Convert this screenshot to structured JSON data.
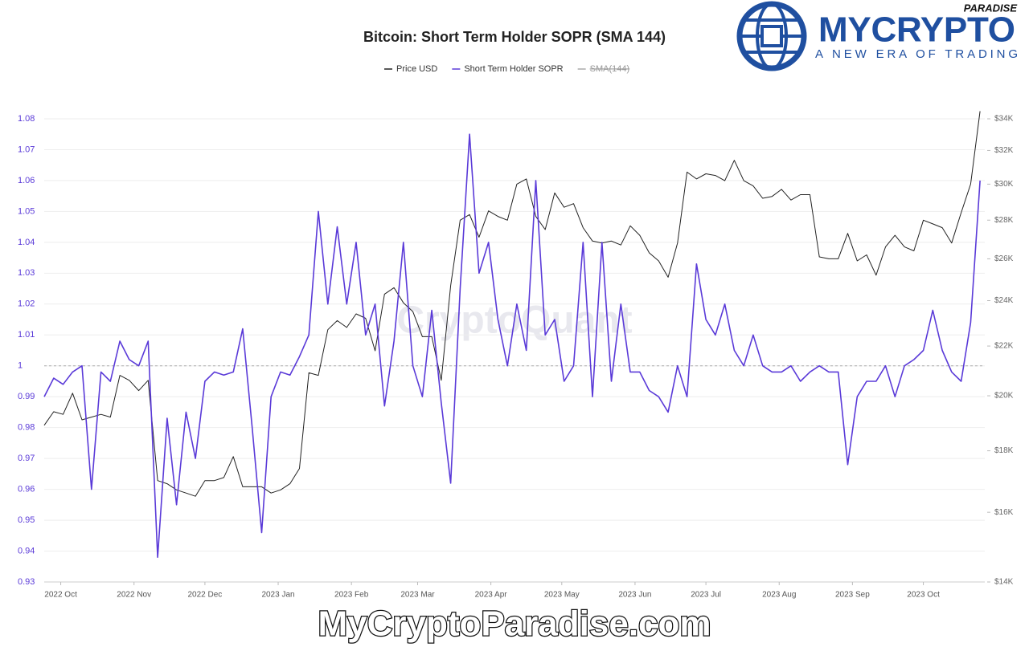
{
  "chart_data": {
    "type": "line",
    "title": "Bitcoin: Short Term Holder SOPR (SMA 144)",
    "x": [
      0,
      4,
      8,
      12,
      16,
      20,
      24,
      28,
      32,
      36,
      40,
      44,
      48,
      52,
      56,
      60,
      64,
      68,
      72,
      76,
      80,
      84,
      88,
      92,
      96,
      100,
      104,
      108,
      112,
      116,
      120,
      124,
      128,
      132,
      136,
      140,
      144,
      148,
      152,
      156,
      160,
      164,
      168,
      172,
      176,
      180,
      184,
      188,
      192,
      196,
      200,
      204,
      208,
      212,
      216,
      220,
      224,
      228,
      232,
      236,
      240,
      244,
      248,
      252,
      256,
      260,
      264,
      268,
      272,
      276,
      280,
      284,
      288,
      292,
      296,
      300,
      304,
      308,
      312,
      316,
      320,
      324,
      328,
      332,
      336,
      340,
      344,
      348,
      352,
      356,
      360,
      364,
      368,
      372,
      376,
      380,
      384,
      388,
      392,
      396
    ],
    "xlim": [
      0,
      398
    ],
    "xticks": [
      {
        "value": 7,
        "label": "2022 Oct"
      },
      {
        "value": 38,
        "label": "2022 Nov"
      },
      {
        "value": 68,
        "label": "2022 Dec"
      },
      {
        "value": 99,
        "label": "2023 Jan"
      },
      {
        "value": 130,
        "label": "2023 Feb"
      },
      {
        "value": 158,
        "label": "2023 Mar"
      },
      {
        "value": 189,
        "label": "2023 Apr"
      },
      {
        "value": 219,
        "label": "2023 May"
      },
      {
        "value": 250,
        "label": "2023 Jun"
      },
      {
        "value": 280,
        "label": "2023 Jul"
      },
      {
        "value": 311,
        "label": "2023 Aug"
      },
      {
        "value": 342,
        "label": "2023 Sep"
      },
      {
        "value": 372,
        "label": "2023 Oct"
      }
    ],
    "series": [
      {
        "name": "Price USD",
        "color": "#222222",
        "axis": "y2",
        "values": [
          18900,
          19400,
          19300,
          20100,
          19100,
          19200,
          19300,
          19200,
          20800,
          20600,
          20200,
          20600,
          17000,
          16900,
          16700,
          16600,
          16500,
          17000,
          17000,
          17100,
          17800,
          16800,
          16800,
          16800,
          16600,
          16700,
          16900,
          17400,
          20900,
          20800,
          22700,
          23100,
          22800,
          23400,
          23200,
          21800,
          24300,
          24600,
          23900,
          23500,
          22400,
          22400,
          20600,
          24700,
          28000,
          28300,
          27100,
          28500,
          28200,
          28000,
          30000,
          30300,
          28200,
          27500,
          29500,
          28700,
          28900,
          27600,
          26900,
          26800,
          26900,
          26700,
          27700,
          27200,
          26300,
          25900,
          25100,
          26800,
          30700,
          30300,
          30600,
          30500,
          30200,
          31400,
          30200,
          29900,
          29200,
          29300,
          29700,
          29100,
          29400,
          29400,
          26100,
          26000,
          26000,
          27300,
          25900,
          26200,
          25200,
          26600,
          27200,
          26600,
          26400,
          28000,
          27800,
          27600,
          26800,
          28400,
          30000,
          34500
        ]
      },
      {
        "name": "Short Term Holder SOPR",
        "color": "#5a3ad8",
        "values": [
          0.99,
          0.996,
          0.994,
          0.998,
          1.0,
          0.96,
          0.998,
          0.995,
          1.008,
          1.002,
          1.0,
          1.008,
          0.938,
          0.983,
          0.955,
          0.985,
          0.97,
          0.995,
          0.998,
          0.997,
          0.998,
          1.012,
          0.98,
          0.946,
          0.99,
          0.998,
          0.997,
          1.003,
          1.01,
          1.05,
          1.02,
          1.045,
          1.02,
          1.04,
          1.01,
          1.02,
          0.987,
          1.008,
          1.04,
          1.0,
          0.99,
          1.018,
          0.988,
          0.962,
          1.025,
          1.075,
          1.03,
          1.04,
          1.015,
          1.0,
          1.02,
          1.005,
          1.06,
          1.01,
          1.015,
          0.995,
          1.0,
          1.04,
          0.99,
          1.04,
          0.995,
          1.02,
          0.998,
          0.998,
          0.992,
          0.99,
          0.985,
          1.0,
          0.99,
          1.033,
          1.015,
          1.01,
          1.02,
          1.005,
          1.0,
          1.01,
          1.0,
          0.998,
          0.998,
          1.0,
          0.995,
          0.998,
          1.0,
          0.998,
          0.998,
          0.968,
          0.99,
          0.995,
          0.995,
          1.0,
          0.99,
          1.0,
          1.002,
          1.005,
          1.018,
          1.005,
          0.998,
          0.995,
          1.014,
          1.06
        ]
      },
      {
        "name": "SMA(144)",
        "color": "#aaaaaa",
        "hidden": true
      }
    ],
    "hline": 1,
    "ylim": [
      0.93,
      1.08
    ],
    "yticks": [
      0.93,
      0.94,
      0.95,
      0.96,
      0.97,
      0.98,
      0.99,
      1,
      1.01,
      1.02,
      1.03,
      1.04,
      1.05,
      1.06,
      1.07,
      1.08
    ],
    "y2lim": [
      14000,
      34000
    ],
    "y2ticks": [
      {
        "value": 14000,
        "label": "$14K"
      },
      {
        "value": 16000,
        "label": "$16K"
      },
      {
        "value": 18000,
        "label": "$18K"
      },
      {
        "value": 20000,
        "label": "$20K"
      },
      {
        "value": 22000,
        "label": "$22K"
      },
      {
        "value": 24000,
        "label": "$24K"
      },
      {
        "value": 26000,
        "label": "$26K"
      },
      {
        "value": 28000,
        "label": "$28K"
      },
      {
        "value": 30000,
        "label": "$30K"
      },
      {
        "value": 32000,
        "label": "$32K"
      },
      {
        "value": 34000,
        "label": "$34K"
      }
    ],
    "y2log": true,
    "grid": true
  },
  "logo": {
    "name": "MYCRYPTO",
    "badge": "PARADISE",
    "tagline": "A NEW ERA OF TRADING"
  },
  "source_watermark": "CryptoQuant",
  "watermark": "MyCryptoParadise.com"
}
